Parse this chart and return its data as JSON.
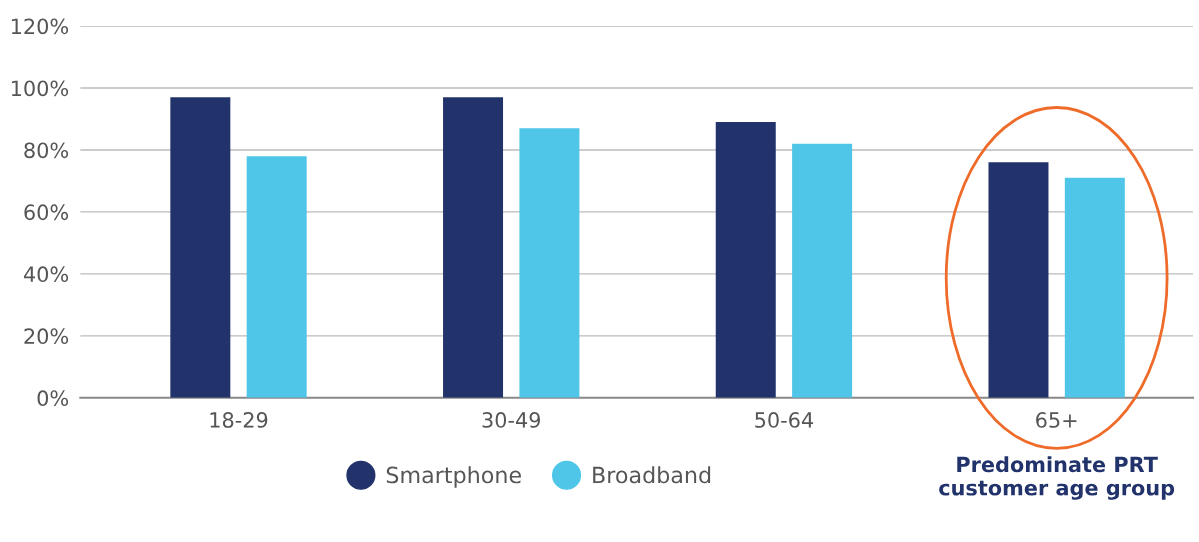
{
  "chart_data": {
    "type": "bar",
    "categories": [
      "18-29",
      "30-49",
      "50-64",
      "65+"
    ],
    "series": [
      {
        "name": "Smartphone",
        "color": "#22336b",
        "values": [
          97,
          97,
          89,
          76
        ]
      },
      {
        "name": "Broadband",
        "color": "#4fc6e8",
        "values": [
          78,
          87,
          82,
          71
        ]
      }
    ],
    "ylim": [
      0,
      120
    ],
    "yticks": [
      {
        "value": 0,
        "label": "0%"
      },
      {
        "value": 20,
        "label": "20%"
      },
      {
        "value": 40,
        "label": "40%"
      },
      {
        "value": 60,
        "label": "60%"
      },
      {
        "value": 80,
        "label": "80%"
      },
      {
        "value": 100,
        "label": "100%"
      },
      {
        "value": 120,
        "label": "120%"
      }
    ],
    "grid": "y",
    "legend": "bottom",
    "annotations": [
      "Predominate PRT customer age group"
    ]
  }
}
